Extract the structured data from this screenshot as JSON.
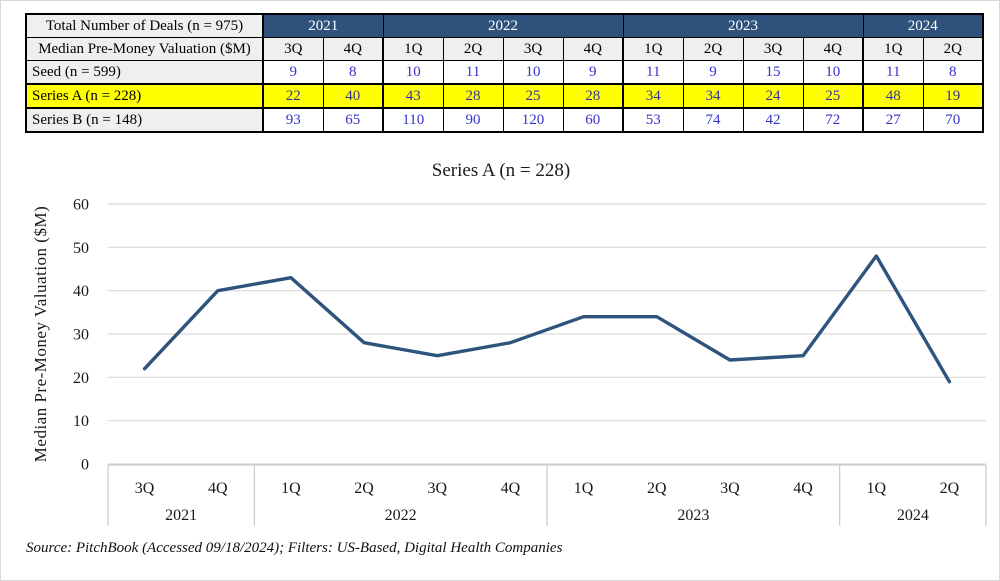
{
  "table": {
    "corner_row1": "Total Number of Deals (n = 975)",
    "corner_row2": "Median Pre-Money Valuation ($M)",
    "year_groups": [
      {
        "label": "2021",
        "span": 2
      },
      {
        "label": "2022",
        "span": 4
      },
      {
        "label": "2023",
        "span": 4
      },
      {
        "label": "2024",
        "span": 2
      }
    ],
    "quarters": [
      "3Q",
      "4Q",
      "1Q",
      "2Q",
      "3Q",
      "4Q",
      "1Q",
      "2Q",
      "3Q",
      "4Q",
      "1Q",
      "2Q"
    ],
    "rows": [
      {
        "label": "Seed (n = 599)",
        "values": [
          9,
          8,
          10,
          11,
          10,
          9,
          11,
          9,
          15,
          10,
          11,
          8
        ],
        "highlight": false
      },
      {
        "label": "Series A  (n = 228)",
        "values": [
          22,
          40,
          43,
          28,
          25,
          28,
          34,
          34,
          24,
          25,
          48,
          19
        ],
        "highlight": true
      },
      {
        "label": "Series B  (n = 148)",
        "values": [
          93,
          65,
          110,
          90,
          120,
          60,
          53,
          74,
          42,
          72,
          27,
          70
        ],
        "highlight": false
      }
    ],
    "colors": {
      "header_bg": "#2E527B",
      "header_text": "#FFFFFF",
      "label_bg": "#EFEFEF",
      "highlight_bg": "#FFFF00",
      "value_text": "#3333CC",
      "highlight_value_text": "#333399"
    }
  },
  "chart_data": {
    "type": "line",
    "title": "Series A (n = 228)",
    "ylabel": "Median Pre-Money Valuation ($M)",
    "ylim": [
      0,
      60
    ],
    "ytick_step": 10,
    "grid": true,
    "legend": "none",
    "categories": [
      "3Q",
      "4Q",
      "1Q",
      "2Q",
      "3Q",
      "4Q",
      "1Q",
      "2Q",
      "3Q",
      "4Q",
      "1Q",
      "2Q"
    ],
    "year_groups": [
      {
        "label": "2021",
        "span": 2
      },
      {
        "label": "2022",
        "span": 4
      },
      {
        "label": "2023",
        "span": 4
      },
      {
        "label": "2024",
        "span": 2
      }
    ],
    "values": [
      22,
      40,
      43,
      28,
      25,
      28,
      34,
      34,
      24,
      25,
      48,
      19
    ],
    "line_color": "#2E547E",
    "grid_color": "#D9D9D9",
    "axis_box_color": "#C9C9C9"
  },
  "source_note": "Source: PitchBook (Accessed 09/18/2024); Filters: US-Based, Digital Health Companies"
}
